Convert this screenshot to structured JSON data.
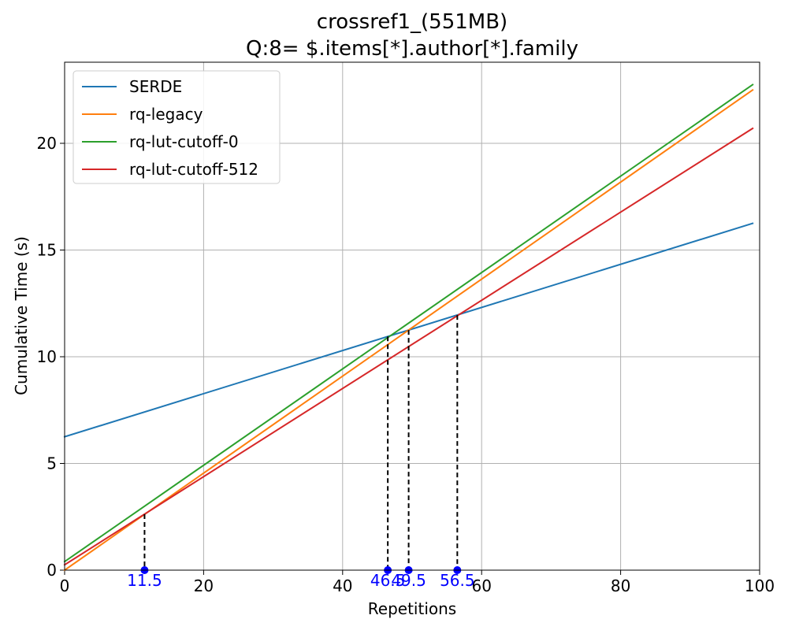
{
  "chart_data": {
    "type": "line",
    "title_line1": "crossref1_(551MB)",
    "title_line2": "Q:8= $.items[*].author[*].family",
    "xlabel": "Repetitions",
    "ylabel": "Cumulative Time (s)",
    "xlim": [
      0,
      100
    ],
    "ylim": [
      0,
      23.8
    ],
    "xticks": [
      0,
      20,
      40,
      60,
      80,
      100
    ],
    "yticks": [
      0,
      5,
      10,
      15,
      20
    ],
    "grid": true,
    "legend_position": "top-left",
    "x_range": [
      0,
      99
    ],
    "series": [
      {
        "name": "SERDE",
        "color": "#1f77b4",
        "start": 6.25,
        "end": 16.25
      },
      {
        "name": "rq-legacy",
        "color": "#ff7f0e",
        "start": 0.0,
        "end": 22.5
      },
      {
        "name": "rq-lut-cutoff-0",
        "color": "#2ca02c",
        "start": 0.4,
        "end": 22.75
      },
      {
        "name": "rq-lut-cutoff-512",
        "color": "#d62728",
        "start": 0.25,
        "end": 20.7
      }
    ],
    "crossovers": [
      {
        "x": 11.5,
        "y": 2.62,
        "label": "11.5"
      },
      {
        "x": 46.5,
        "y": 10.95,
        "label": "46.5"
      },
      {
        "x": 49.5,
        "y": 11.25,
        "label": "49.5"
      },
      {
        "x": 56.5,
        "y": 11.95,
        "label": "56.5"
      }
    ],
    "crossover_color": "#0000ff"
  }
}
